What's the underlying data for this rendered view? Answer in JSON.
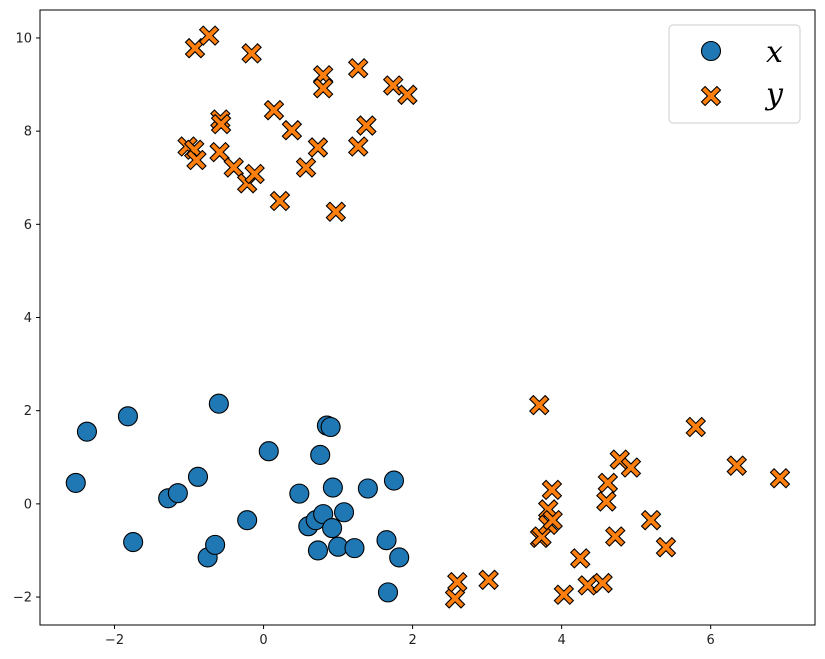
{
  "chart_data": {
    "type": "scatter",
    "title": "",
    "xlabel": "",
    "ylabel": "",
    "xlim": [
      -3.0,
      7.4
    ],
    "ylim": [
      -2.6,
      10.6
    ],
    "x_ticks": [
      -2,
      0,
      2,
      4,
      6
    ],
    "y_ticks": [
      -2,
      0,
      2,
      4,
      6,
      8,
      10
    ],
    "x_tick_labels": [
      "−2",
      "0",
      "2",
      "4",
      "6"
    ],
    "y_tick_labels": [
      "−2",
      "0",
      "2",
      "4",
      "6",
      "8",
      "10"
    ],
    "grid": false,
    "legend": {
      "position": "upper-right",
      "entries": [
        "x",
        "y"
      ]
    },
    "series": [
      {
        "name": "x",
        "marker": "circle",
        "color": "#1f77b4",
        "points": [
          [
            -2.52,
            0.45
          ],
          [
            -2.37,
            1.55
          ],
          [
            -1.82,
            1.88
          ],
          [
            -1.75,
            -0.82
          ],
          [
            -1.28,
            0.12
          ],
          [
            -1.15,
            0.23
          ],
          [
            -0.88,
            0.58
          ],
          [
            -0.75,
            -1.15
          ],
          [
            -0.65,
            -0.88
          ],
          [
            -0.6,
            2.15
          ],
          [
            -0.22,
            -0.35
          ],
          [
            0.07,
            1.13
          ],
          [
            0.48,
            0.22
          ],
          [
            0.6,
            -0.48
          ],
          [
            0.7,
            -0.35
          ],
          [
            0.73,
            -1.0
          ],
          [
            0.76,
            1.05
          ],
          [
            0.8,
            -0.22
          ],
          [
            0.85,
            1.68
          ],
          [
            0.9,
            1.65
          ],
          [
            0.92,
            -0.52
          ],
          [
            0.93,
            0.35
          ],
          [
            1.0,
            -0.92
          ],
          [
            1.08,
            -0.18
          ],
          [
            1.22,
            -0.95
          ],
          [
            1.4,
            0.33
          ],
          [
            1.65,
            -0.78
          ],
          [
            1.67,
            -1.9
          ],
          [
            1.75,
            0.5
          ],
          [
            1.82,
            -1.15
          ]
        ]
      },
      {
        "name": "y",
        "marker": "plus",
        "color": "#ff7f0e",
        "points": [
          [
            -0.92,
            9.78
          ],
          [
            -0.73,
            10.05
          ],
          [
            -0.16,
            9.67
          ],
          [
            -1.02,
            7.67
          ],
          [
            -0.93,
            7.6
          ],
          [
            -0.9,
            7.38
          ],
          [
            -0.58,
            8.25
          ],
          [
            -0.57,
            8.15
          ],
          [
            -0.59,
            7.55
          ],
          [
            -0.4,
            7.22
          ],
          [
            -0.22,
            6.88
          ],
          [
            -0.12,
            7.08
          ],
          [
            0.14,
            8.45
          ],
          [
            0.22,
            6.5
          ],
          [
            0.38,
            8.02
          ],
          [
            0.57,
            7.22
          ],
          [
            0.73,
            7.65
          ],
          [
            0.8,
            9.2
          ],
          [
            0.8,
            8.92
          ],
          [
            0.97,
            6.27
          ],
          [
            1.27,
            9.35
          ],
          [
            1.27,
            7.67
          ],
          [
            1.38,
            8.12
          ],
          [
            1.74,
            8.98
          ],
          [
            1.93,
            8.78
          ],
          [
            2.57,
            -2.03
          ],
          [
            2.6,
            -1.68
          ],
          [
            3.02,
            -1.63
          ],
          [
            3.7,
            2.12
          ],
          [
            3.71,
            -0.73
          ],
          [
            3.73,
            -0.7
          ],
          [
            3.82,
            -0.12
          ],
          [
            3.82,
            -0.45
          ],
          [
            3.87,
            0.3
          ],
          [
            3.88,
            -0.35
          ],
          [
            4.03,
            -1.95
          ],
          [
            4.25,
            -1.17
          ],
          [
            4.35,
            -1.75
          ],
          [
            4.55,
            -1.7
          ],
          [
            4.6,
            0.05
          ],
          [
            4.62,
            0.45
          ],
          [
            4.72,
            -0.7
          ],
          [
            4.78,
            0.95
          ],
          [
            4.93,
            0.78
          ],
          [
            5.2,
            -0.35
          ],
          [
            5.4,
            -0.93
          ],
          [
            5.8,
            1.65
          ],
          [
            6.35,
            0.82
          ],
          [
            6.93,
            0.55
          ]
        ]
      }
    ]
  }
}
